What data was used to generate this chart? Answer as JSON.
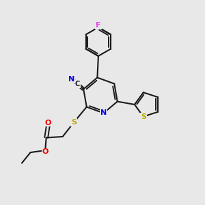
{
  "bg_color": "#e8e8e8",
  "bond_color": "#1a1a1a",
  "figsize": [
    3.0,
    3.0
  ],
  "dpi": 100,
  "atom_colors": {
    "N": "#0000ee",
    "O": "#ee0000",
    "S": "#bbaa00",
    "F": "#ee44ee",
    "C": "#1a1a1a"
  }
}
